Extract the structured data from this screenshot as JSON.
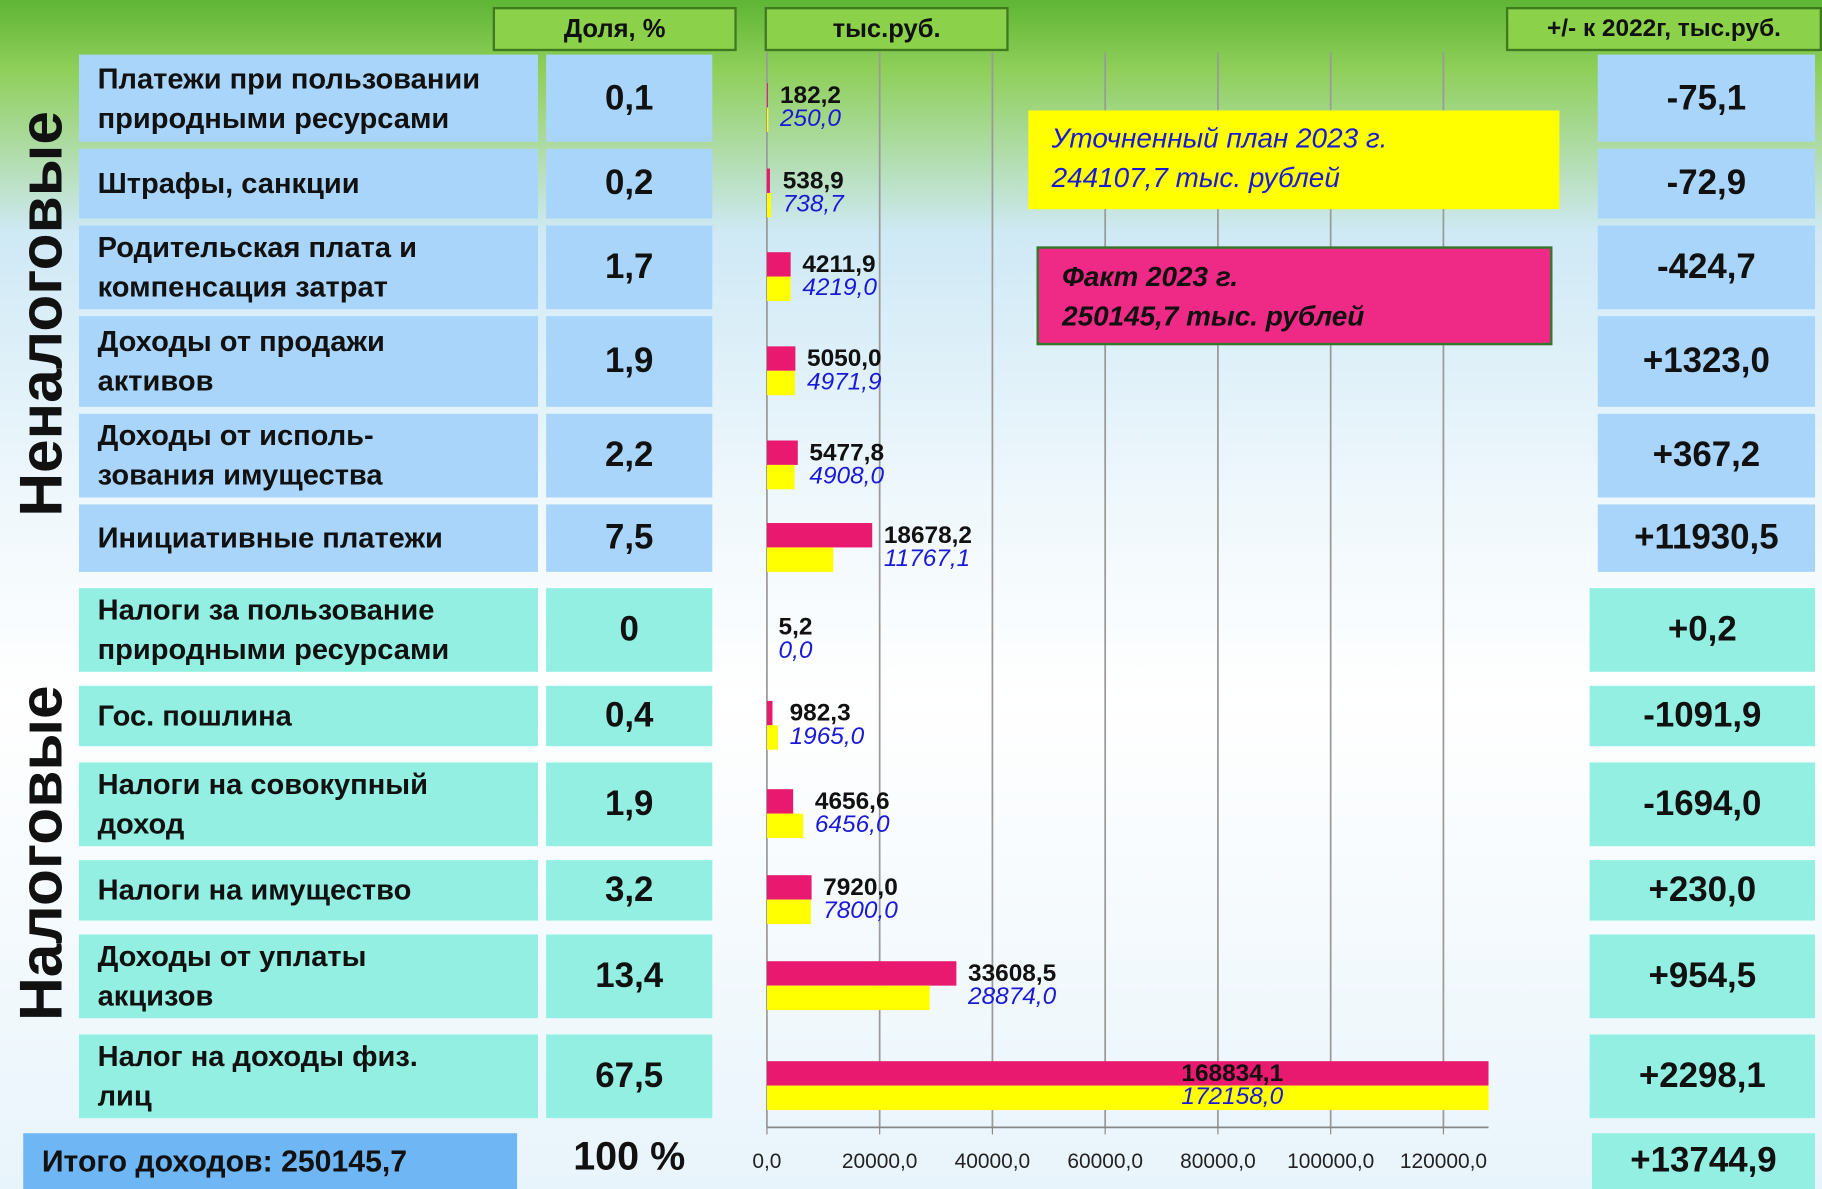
{
  "chart_data": {
    "type": "bar",
    "orientation": "horizontal",
    "categories": [
      "Платежи при пользовании\nприродными ресурсами",
      "Штрафы, санкции",
      "Родительская плата и\nкомпенсация затрат",
      "Доходы от продажи\nактивов",
      "Доходы от исполь-\nзования имущества",
      "Инициативные платежи",
      "Налоги за пользование\nприродными ресурсами",
      "Гос. пошлина",
      "Налоги на совокупный\nдоход",
      "Налоги на имущество",
      "Доходы от уплаты\nакцизов",
      "Налог на доходы физ.\nлиц"
    ],
    "series": [
      {
        "name": "Факт 2023 г.",
        "total": "250145,7 тыс. рублей",
        "color": "#e8196e",
        "values": [
          182.2,
          538.9,
          4211.9,
          5050.0,
          5477.8,
          18678.2,
          5.2,
          982.3,
          4656.6,
          7920.0,
          33608.5,
          168834.1
        ],
        "value_labels": [
          "182,2",
          "538,9",
          "4211,9",
          "5050,0",
          "5477,8",
          "18678,2",
          "5,2",
          "982,3",
          "4656,6",
          "7920,0",
          "33608,5",
          "168834,1"
        ]
      },
      {
        "name": "Уточненный план 2023 г.",
        "total": "244107,7 тыс. рублей",
        "color": "#ffff00",
        "values": [
          250.0,
          738.7,
          4219.0,
          4971.9,
          4908.0,
          11767.1,
          0.0,
          1965.0,
          6456.0,
          7800.0,
          28874.0,
          172158.0
        ],
        "value_labels": [
          "250,0",
          "738,7",
          "4219,0",
          "4971,9",
          "4908,0",
          "11767,1",
          "0,0",
          "1965,0",
          "6456,0",
          "7800,0",
          "28874,0",
          "172158,0"
        ]
      }
    ],
    "xlim": [
      0,
      128000
    ],
    "xticks": [
      {
        "value": 0,
        "label": "0,0"
      },
      {
        "value": 20000,
        "label": "20000,0"
      },
      {
        "value": 40000,
        "label": "40000,0"
      },
      {
        "value": 60000,
        "label": "60000,0"
      },
      {
        "value": 80000,
        "label": "80000,0"
      },
      {
        "value": 100000,
        "label": "100000,0"
      },
      {
        "value": 120000,
        "label": "120000,0"
      }
    ],
    "grid": true
  },
  "table": {
    "header": {
      "share": "Доля, %",
      "unit": "тыс.руб.",
      "diff": "+/- к 2022г, тыс.руб."
    },
    "groups": [
      {
        "name": "Неналоговые",
        "color": "#a9d5fa",
        "shares": [
          "0,1",
          "0,2",
          "1,7",
          "1,9",
          "2,2",
          "7,5"
        ],
        "diffs": [
          "-75,1",
          "-72,9",
          "-424,7",
          "+1323,0",
          "+367,2",
          "+11930,5"
        ]
      },
      {
        "name": "Налоговые",
        "color": "#93efe2",
        "shares": [
          "0",
          "0,4",
          "1,9",
          "3,2",
          "13,4",
          "67,5"
        ],
        "diffs": [
          "+0,2",
          "-1091,9",
          "-1694,0",
          "+230,0",
          "+954,5",
          "+2298,1"
        ]
      }
    ],
    "total": {
      "label": "Итого доходов: 250145,7",
      "share": "100 %",
      "diff": "+13744,9"
    }
  }
}
